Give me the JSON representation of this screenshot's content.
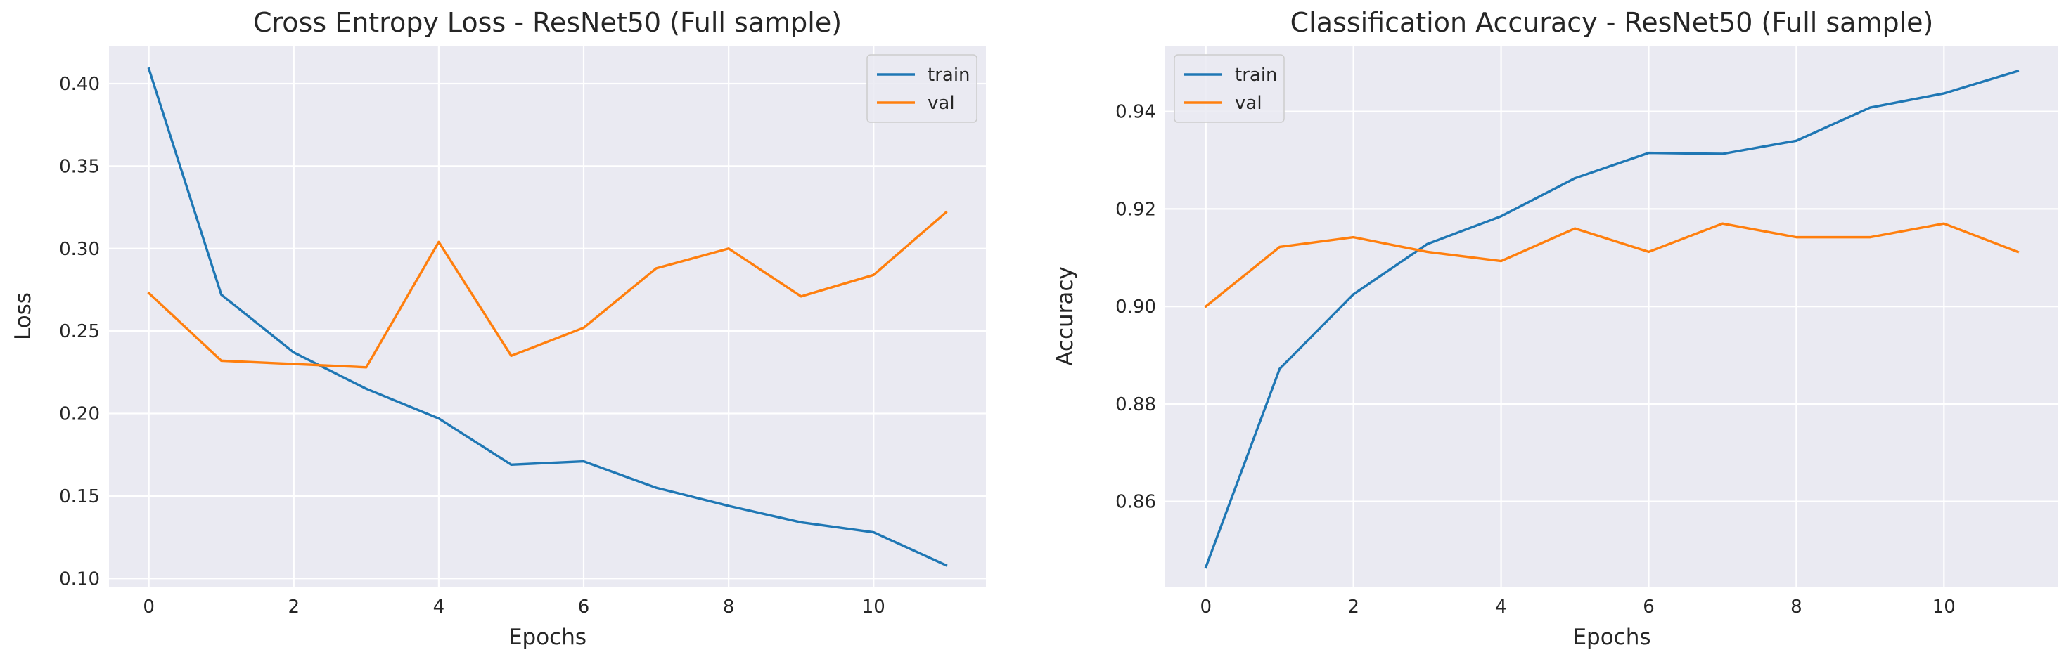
{
  "chart_data": [
    {
      "type": "line",
      "title": "Cross Entropy Loss - ResNet50 (Full sample)",
      "xlabel": "Epochs",
      "ylabel": "Loss",
      "xlim": [
        -0.55,
        11.55
      ],
      "ylim": [
        0.095,
        0.423
      ],
      "xticks": [
        0,
        2,
        4,
        6,
        8,
        10
      ],
      "xtick_labels": [
        "0",
        "2",
        "4",
        "6",
        "8",
        "10"
      ],
      "yticks": [
        0.1,
        0.15,
        0.2,
        0.25,
        0.3,
        0.35,
        0.4
      ],
      "ytick_labels": [
        "0.10",
        "0.15",
        "0.20",
        "0.25",
        "0.30",
        "0.35",
        "0.40"
      ],
      "grid": true,
      "legend_position": "top-right",
      "x": [
        0,
        1,
        2,
        3,
        4,
        5,
        6,
        7,
        8,
        9,
        10,
        11
      ],
      "series": [
        {
          "name": "train",
          "color": "#1f77b4",
          "values": [
            0.409,
            0.272,
            0.237,
            0.215,
            0.197,
            0.169,
            0.171,
            0.155,
            0.144,
            0.134,
            0.128,
            0.108
          ]
        },
        {
          "name": "val",
          "color": "#ff7f0e",
          "values": [
            0.273,
            0.232,
            0.23,
            0.228,
            0.304,
            0.235,
            0.252,
            0.288,
            0.3,
            0.271,
            0.284,
            0.322
          ]
        }
      ]
    },
    {
      "type": "line",
      "title": "Classification Accuracy - ResNet50 (Full sample)",
      "xlabel": "Epochs",
      "ylabel": "Accuracy",
      "xlim": [
        -0.55,
        11.55
      ],
      "ylim": [
        0.8425,
        0.9535
      ],
      "xticks": [
        0,
        2,
        4,
        6,
        8,
        10
      ],
      "xtick_labels": [
        "0",
        "2",
        "4",
        "6",
        "8",
        "10"
      ],
      "yticks": [
        0.86,
        0.88,
        0.9,
        0.92,
        0.94
      ],
      "ytick_labels": [
        "0.86",
        "0.88",
        "0.90",
        "0.92",
        "0.94"
      ],
      "grid": true,
      "legend_position": "top-left",
      "x": [
        0,
        1,
        2,
        3,
        4,
        5,
        6,
        7,
        8,
        9,
        10,
        11
      ],
      "series": [
        {
          "name": "train",
          "color": "#1f77b4",
          "values": [
            0.8465,
            0.8872,
            0.9025,
            0.9128,
            0.9185,
            0.9263,
            0.9315,
            0.9313,
            0.934,
            0.9408,
            0.9437,
            0.9483
          ]
        },
        {
          "name": "val",
          "color": "#ff7f0e",
          "values": [
            0.9,
            0.9122,
            0.9142,
            0.9112,
            0.9093,
            0.916,
            0.9112,
            0.917,
            0.9142,
            0.9142,
            0.917,
            0.9112
          ]
        }
      ]
    }
  ]
}
